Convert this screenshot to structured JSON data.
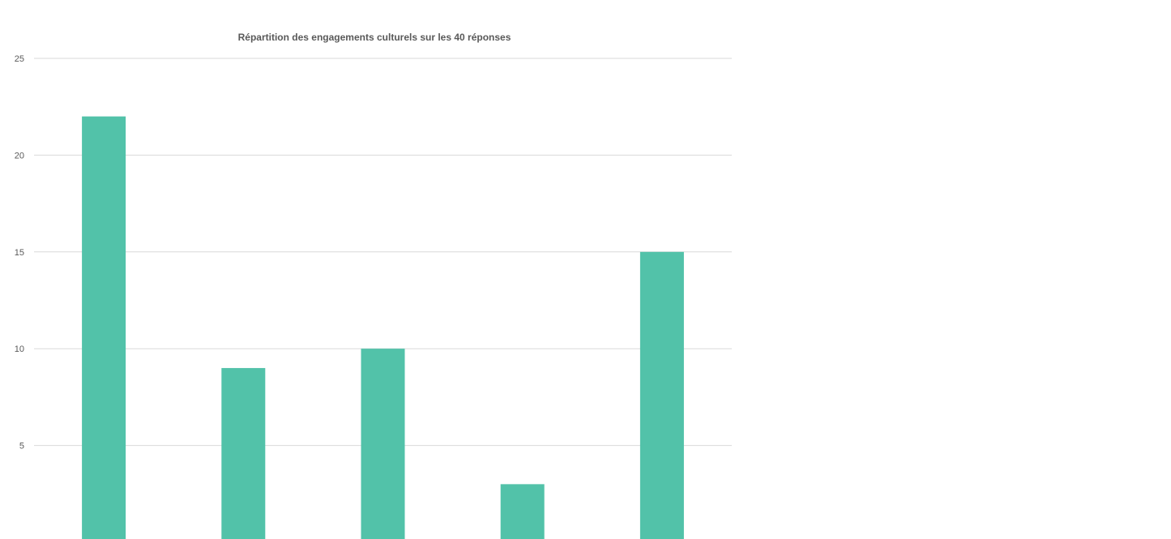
{
  "chart_data": {
    "type": "bar",
    "title": "Répartition des engagements culturels sur les 40 réponses",
    "categories": [
      "",
      "",
      "",
      "",
      ""
    ],
    "values": [
      22,
      9,
      10,
      3,
      15
    ],
    "ylim": [
      0,
      25
    ],
    "yticks": [
      0,
      5,
      10,
      15,
      20,
      25
    ],
    "grid": true,
    "bar_color": "#52c2a9",
    "grid_color": "#d9d9d9",
    "text_color": "#595959",
    "xlabel": "",
    "ylabel": ""
  }
}
